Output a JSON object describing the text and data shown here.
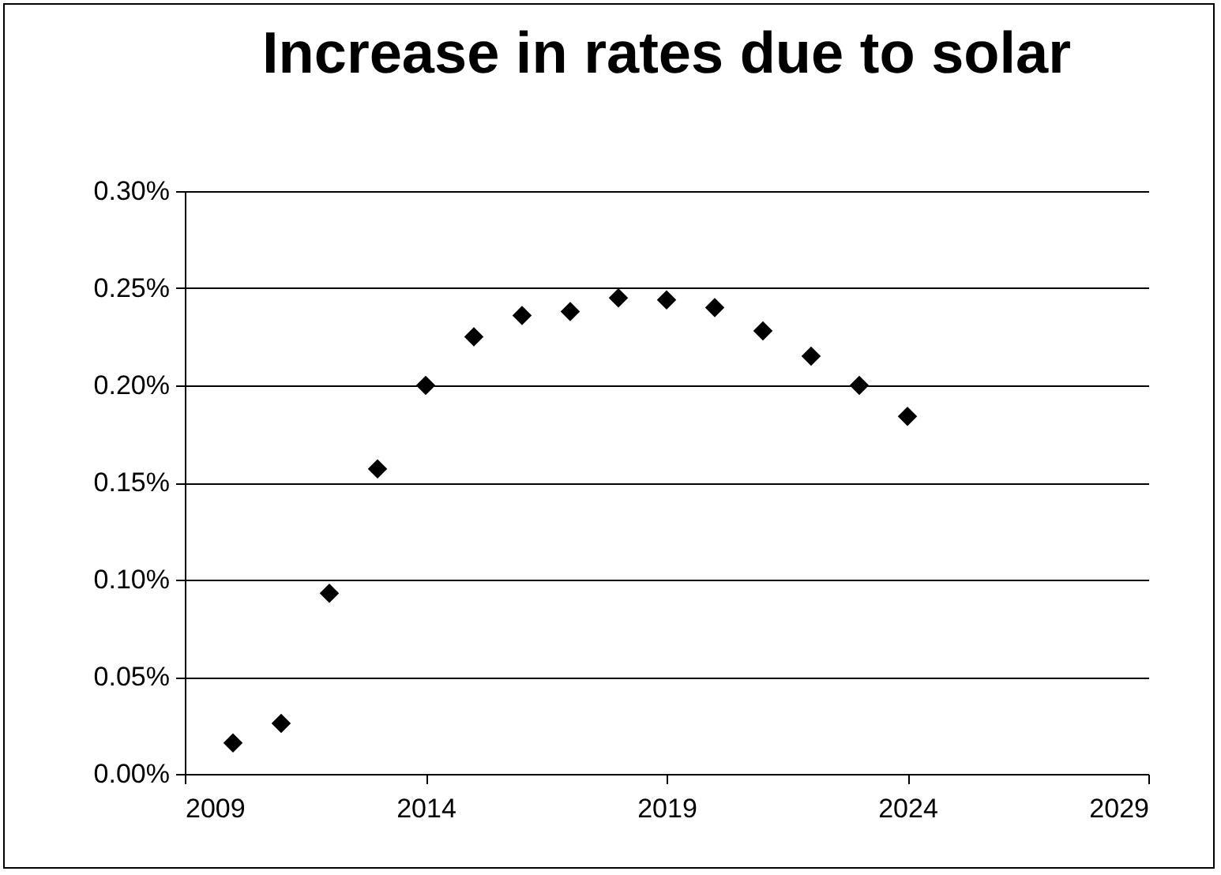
{
  "chart_data": {
    "type": "scatter",
    "title": "Increase in rates due to solar",
    "x": [
      2010,
      2011,
      2012,
      2013,
      2014,
      2015,
      2016,
      2017,
      2018,
      2019,
      2020,
      2021,
      2022,
      2023,
      2024
    ],
    "values": [
      0.016,
      0.026,
      0.093,
      0.157,
      0.2,
      0.225,
      0.236,
      0.238,
      0.245,
      0.244,
      0.24,
      0.228,
      0.215,
      0.2,
      0.184
    ],
    "color": "#000000",
    "marker": "diamond",
    "grid": "y",
    "xlim": [
      2009,
      2029
    ],
    "xticks": [
      2009,
      2014,
      2019,
      2024,
      2029
    ],
    "ylim": [
      0,
      0.3
    ],
    "yticks": [
      {
        "value": 0,
        "label": "0.00%"
      },
      {
        "value": 0.05,
        "label": "0.05%"
      },
      {
        "value": 0.1,
        "label": "0.10%"
      },
      {
        "value": 0.15,
        "label": "0.15%"
      },
      {
        "value": 0.2,
        "label": "0.20%"
      },
      {
        "value": 0.25,
        "label": "0.25%"
      },
      {
        "value": 0.3,
        "label": "0.30%"
      }
    ]
  }
}
